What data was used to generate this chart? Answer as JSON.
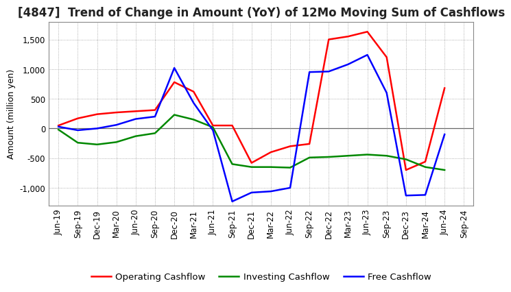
{
  "title": "[4847]  Trend of Change in Amount (YoY) of 12Mo Moving Sum of Cashflows",
  "ylabel": "Amount (million yen)",
  "x_labels": [
    "Jun-19",
    "Sep-19",
    "Dec-19",
    "Mar-20",
    "Jun-20",
    "Sep-20",
    "Dec-20",
    "Mar-21",
    "Jun-21",
    "Sep-21",
    "Dec-21",
    "Mar-22",
    "Jun-22",
    "Sep-22",
    "Dec-22",
    "Mar-23",
    "Jun-23",
    "Sep-23",
    "Dec-23",
    "Mar-24",
    "Jun-24",
    "Sep-24"
  ],
  "operating": [
    50,
    170,
    240,
    270,
    290,
    310,
    780,
    620,
    50,
    50,
    -580,
    -400,
    -300,
    -260,
    1500,
    1550,
    1630,
    1200,
    -700,
    -560,
    680,
    null
  ],
  "investing": [
    -20,
    -240,
    -270,
    -230,
    -130,
    -80,
    230,
    150,
    20,
    -600,
    -650,
    -650,
    -660,
    -490,
    -480,
    -460,
    -440,
    -460,
    -520,
    -650,
    -700,
    null
  ],
  "free": [
    30,
    -30,
    0,
    60,
    160,
    200,
    1020,
    430,
    -30,
    -1230,
    -1080,
    -1060,
    -1000,
    950,
    960,
    1080,
    1240,
    600,
    -1130,
    -1120,
    -100,
    null
  ],
  "operating_color": "#ff0000",
  "investing_color": "#008800",
  "free_color": "#0000ff",
  "ylim": [
    -1300,
    1800
  ],
  "yticks": [
    -1000,
    -500,
    0,
    500,
    1000,
    1500
  ],
  "background_color": "#ffffff",
  "grid_color": "#999999",
  "zero_line_color": "#666666",
  "title_fontsize": 12,
  "axis_label_fontsize": 9,
  "tick_fontsize": 8.5,
  "legend_fontsize": 9.5,
  "line_width": 1.8
}
